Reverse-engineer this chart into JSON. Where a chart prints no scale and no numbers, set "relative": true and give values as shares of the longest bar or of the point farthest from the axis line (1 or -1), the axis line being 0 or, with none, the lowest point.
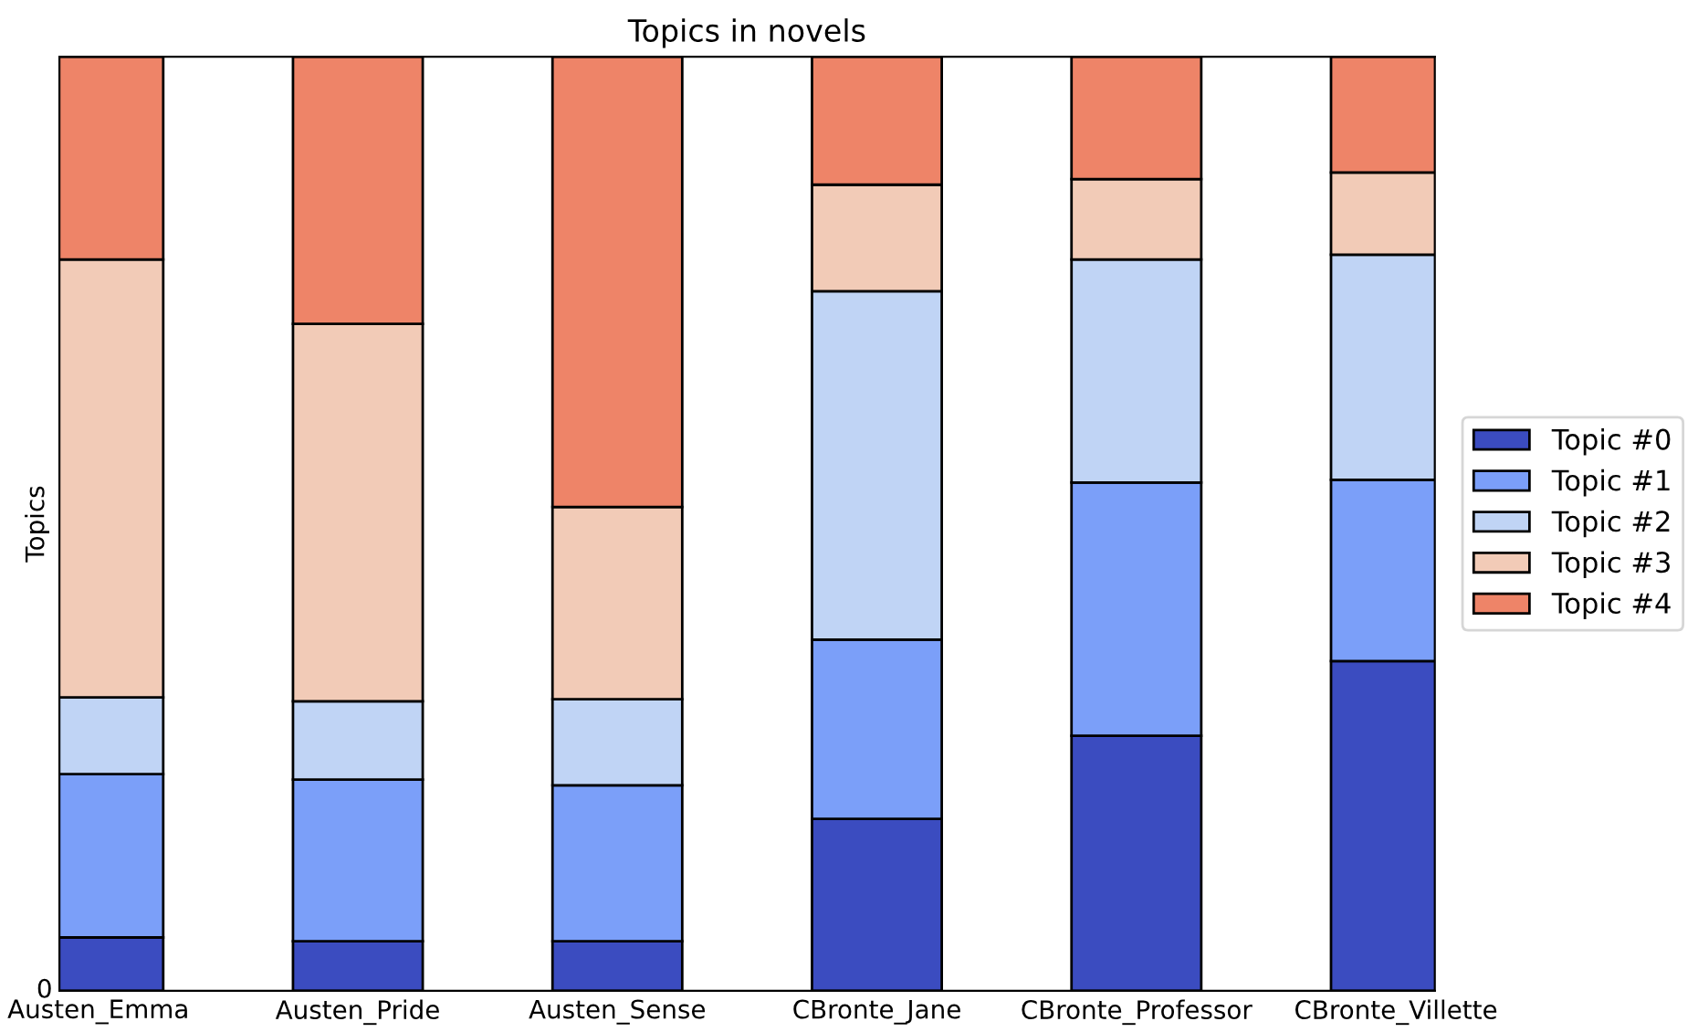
{
  "chart_data": {
    "type": "bar",
    "title": "Topics in novels",
    "ylabel": "Topics",
    "categories": [
      "Austen_Emma",
      "Austen_Pride",
      "Austen_Sense",
      "CBronte_Jane",
      "CBronte_Professor",
      "CBronte_Villette"
    ],
    "stacked": true,
    "relative": true,
    "annotations": [
      "0"
    ],
    "legend": "right",
    "grid": false,
    "series": [
      {
        "name": "Topic #0",
        "color": "#3b4cc0",
        "values": [
          0.057,
          0.053,
          0.053,
          0.184,
          0.273,
          0.353
        ]
      },
      {
        "name": "Topic #1",
        "color": "#7b9ff9",
        "values": [
          0.175,
          0.173,
          0.167,
          0.192,
          0.271,
          0.194
        ]
      },
      {
        "name": "Topic #2",
        "color": "#c0d4f5",
        "values": [
          0.082,
          0.084,
          0.092,
          0.373,
          0.239,
          0.241
        ]
      },
      {
        "name": "Topic #3",
        "color": "#f2cbb7",
        "values": [
          0.469,
          0.404,
          0.206,
          0.114,
          0.086,
          0.088
        ]
      },
      {
        "name": "Topic #4",
        "color": "#ee8468",
        "values": [
          0.217,
          0.286,
          0.482,
          0.137,
          0.131,
          0.124
        ]
      }
    ]
  }
}
